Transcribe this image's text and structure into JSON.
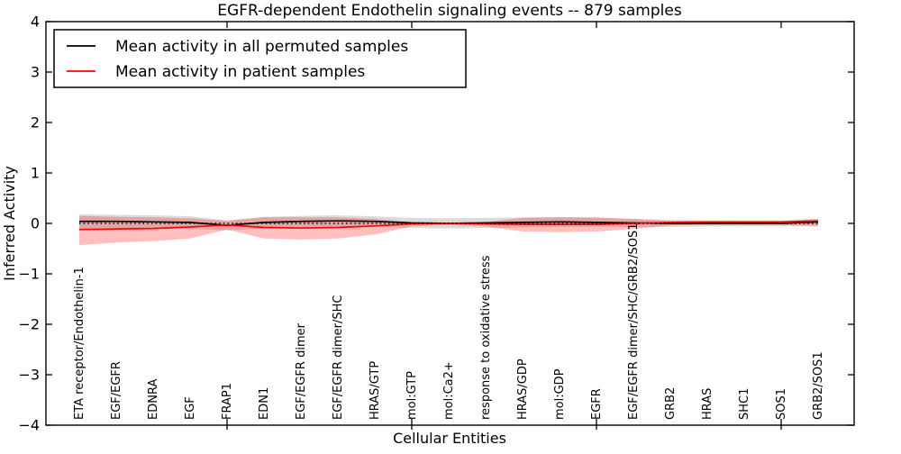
{
  "legend": {
    "position": "upper left",
    "entries": [
      {
        "label": "Mean activity in all permuted samples",
        "color": "#000000"
      },
      {
        "label": "Mean activity in patient samples",
        "color": "#ff0000"
      }
    ]
  },
  "colors": {
    "permuted_line": "#000000",
    "patient_line": "#ff0000",
    "permuted_band": "#999999",
    "patient_band": "#ff0000",
    "background": "#ffffff",
    "axes": "#000000"
  },
  "chart_data": {
    "type": "line",
    "title": "EGFR-dependent Endothelin signaling events -- 879 samples",
    "xlabel": "Cellular Entities",
    "ylabel": "Inferred Activity",
    "ylim": [
      -4,
      4
    ],
    "yticks": [
      4,
      3,
      2,
      1,
      0,
      -1,
      -2,
      -3,
      -4
    ],
    "grid": false,
    "zero_reference_line": true,
    "legend_position": "upper left",
    "x_major_tick_indices": [
      4,
      9,
      14,
      19
    ],
    "categories": [
      "ETA receptor/Endothelin-1",
      "EGF/EGFR",
      "EDNRA",
      "EGF",
      "FRAP1",
      "EDN1",
      "EGF/EGFR dimer",
      "EGF/EGFR dimer/SHC",
      "HRAS/GTP",
      "mol:GTP",
      "mol:Ca2+",
      "response to oxidative stress",
      "HRAS/GDP",
      "mol:GDP",
      "EGFR",
      "EGF/EGFR dimer/SHC/GRB2/SOS1",
      "GRB2",
      "HRAS",
      "SHC1",
      "SOS1",
      "GRB2/SOS1"
    ],
    "series": [
      {
        "name": "Mean activity in all permuted samples",
        "color": "#000000",
        "values": [
          0.04,
          0.04,
          0.03,
          0.02,
          -0.04,
          0.02,
          0.04,
          0.05,
          0.04,
          0.01,
          0.0,
          0.01,
          0.02,
          0.03,
          0.02,
          0.01,
          0.0,
          0.0,
          0.0,
          0.0,
          0.03
        ],
        "band_upper": [
          0.18,
          0.17,
          0.16,
          0.14,
          0.06,
          0.13,
          0.15,
          0.16,
          0.14,
          0.11,
          0.1,
          0.11,
          0.12,
          0.13,
          0.11,
          0.09,
          0.07,
          0.06,
          0.06,
          0.06,
          0.1
        ],
        "band_lower": [
          -0.1,
          -0.09,
          -0.1,
          -0.1,
          -0.14,
          -0.09,
          -0.07,
          -0.06,
          -0.06,
          -0.09,
          -0.1,
          -0.09,
          -0.08,
          -0.07,
          -0.07,
          -0.07,
          -0.07,
          -0.06,
          -0.06,
          -0.06,
          -0.04
        ],
        "band_color": "#999999",
        "band_opacity": 0.35
      },
      {
        "name": "Mean activity in patient samples",
        "color": "#ff0000",
        "values": [
          -0.12,
          -0.11,
          -0.1,
          -0.07,
          -0.03,
          -0.08,
          -0.09,
          -0.08,
          -0.05,
          -0.01,
          0.0,
          -0.01,
          -0.02,
          -0.02,
          -0.02,
          0.0,
          0.02,
          0.03,
          0.03,
          0.03,
          0.05
        ],
        "band_upper": [
          0.15,
          0.13,
          0.12,
          0.1,
          0.05,
          0.12,
          0.12,
          0.12,
          0.09,
          0.03,
          0.02,
          0.03,
          0.11,
          0.12,
          0.12,
          0.09,
          0.05,
          0.04,
          0.04,
          0.04,
          0.08
        ],
        "band_lower": [
          -0.43,
          -0.38,
          -0.35,
          -0.3,
          -0.12,
          -0.3,
          -0.32,
          -0.3,
          -0.22,
          -0.06,
          -0.03,
          -0.06,
          -0.16,
          -0.17,
          -0.16,
          -0.11,
          -0.04,
          -0.03,
          -0.03,
          -0.03,
          -0.06
        ],
        "band_color": "#ff0000",
        "band_opacity": 0.25
      }
    ]
  }
}
